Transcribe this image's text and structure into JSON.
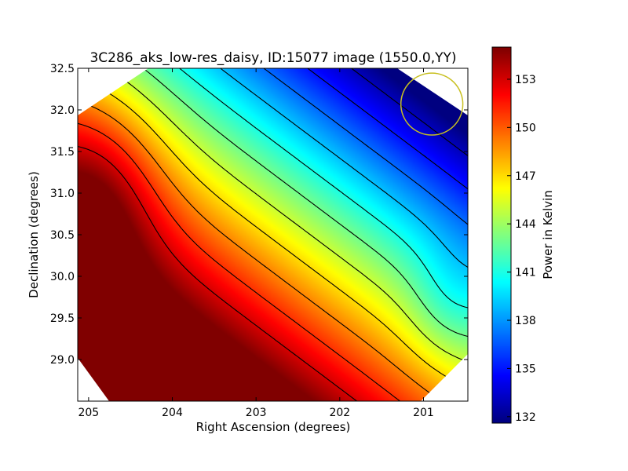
{
  "chart_data": {
    "type": "heatmap",
    "title": "3C286_aks_low-res_daisy, ID:15077 image (1550.0,YY)",
    "xlabel": "Right Ascension (degrees)",
    "ylabel": "Declination (degrees)",
    "colorbar_label": "Power in Kelvin",
    "colormap": "jet",
    "xlim": [
      205.13,
      200.47
    ],
    "ylim": [
      28.5,
      32.5
    ],
    "x_ticks": [
      {
        "value": 205,
        "label": "205"
      },
      {
        "value": 204,
        "label": "204"
      },
      {
        "value": 203,
        "label": "203"
      },
      {
        "value": 202,
        "label": "202"
      },
      {
        "value": 201,
        "label": "201"
      }
    ],
    "y_ticks": [
      {
        "value": 29.0,
        "label": "29.0"
      },
      {
        "value": 29.5,
        "label": "29.5"
      },
      {
        "value": 30.0,
        "label": "30.0"
      },
      {
        "value": 30.5,
        "label": "30.5"
      },
      {
        "value": 31.0,
        "label": "31.0"
      },
      {
        "value": 31.5,
        "label": "31.5"
      },
      {
        "value": 32.0,
        "label": "32.0"
      },
      {
        "value": 32.5,
        "label": "32.5"
      }
    ],
    "color_range": [
      131.6,
      155.0
    ],
    "colorbar_ticks": [
      {
        "value": 132,
        "label": "132"
      },
      {
        "value": 135,
        "label": "135"
      },
      {
        "value": 138,
        "label": "138"
      },
      {
        "value": 141,
        "label": "141"
      },
      {
        "value": 144,
        "label": "144"
      },
      {
        "value": 147,
        "label": "147"
      },
      {
        "value": 150,
        "label": "150"
      },
      {
        "value": 153,
        "label": "153"
      }
    ],
    "contour_levels": [
      133,
      135,
      137,
      139,
      141,
      143,
      145,
      147,
      149,
      151,
      153
    ],
    "beam_circle": {
      "ra": 200.9,
      "dec": 32.07,
      "radius_deg": 0.37,
      "color": "#c8c020"
    },
    "grid": false
  }
}
